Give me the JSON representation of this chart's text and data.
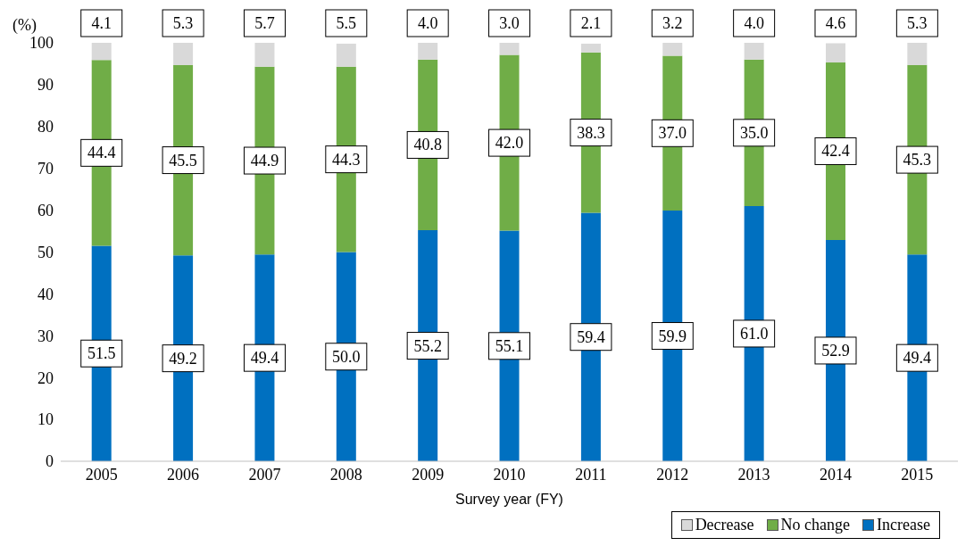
{
  "chart_data": {
    "type": "bar",
    "stacked": true,
    "xlabel": "Survey year (FY)",
    "ylabel": "(%)",
    "categories": [
      "2005",
      "2006",
      "2007",
      "2008",
      "2009",
      "2010",
      "2011",
      "2012",
      "2013",
      "2014",
      "2015"
    ],
    "series": [
      {
        "name": "Increase",
        "color": "#0070c0",
        "values": [
          51.5,
          49.2,
          49.4,
          50.0,
          55.2,
          55.1,
          59.4,
          59.9,
          61.0,
          52.9,
          49.4
        ],
        "value_labels": [
          "51.5",
          "49.2",
          "49.4",
          "50.0",
          "55.2",
          "55.1",
          "59.4",
          "59.9",
          "61.0",
          "52.9",
          "49.4"
        ]
      },
      {
        "name": "No change",
        "color": "#70ad47",
        "values": [
          44.4,
          45.5,
          44.9,
          44.3,
          40.8,
          42.0,
          38.3,
          37.0,
          35.0,
          42.4,
          45.3
        ],
        "value_labels": [
          "44.4",
          "45.5",
          "44.9",
          "44.3",
          "40.8",
          "42.0",
          "38.3",
          "37.0",
          "35.0",
          "42.4",
          "45.3"
        ]
      },
      {
        "name": "Decrease",
        "color": "#d9d9d9",
        "values": [
          4.1,
          5.3,
          5.7,
          5.5,
          4.0,
          3.0,
          2.1,
          3.2,
          4.0,
          4.6,
          5.3
        ],
        "value_labels": [
          "4.1",
          "5.3",
          "5.7",
          "5.5",
          "4.0",
          "3.0",
          "2.1",
          "3.2",
          "4.0",
          "4.6",
          "5.3"
        ]
      }
    ],
    "ylim": [
      0,
      100
    ],
    "yticks": [
      0,
      10,
      20,
      30,
      40,
      50,
      60,
      70,
      80,
      90,
      100
    ],
    "grid": false,
    "legend": "bottom right"
  }
}
